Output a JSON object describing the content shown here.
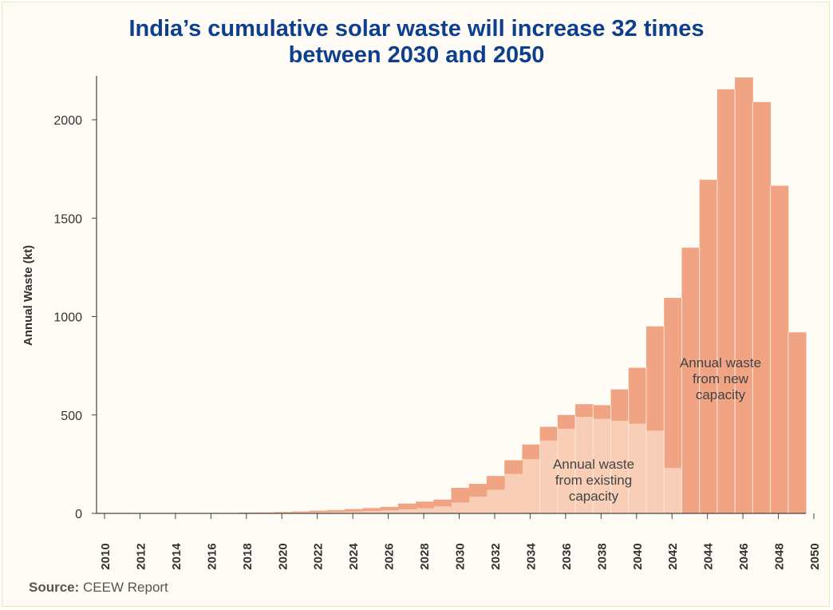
{
  "title": {
    "line1": "India’s cumulative solar waste will increase 32 times",
    "line2": "between 2030 and 2050"
  },
  "source": {
    "label": "Source:",
    "text": "CEEW Report"
  },
  "colors": {
    "title": "#0d3f8f",
    "new_capacity": "#f0a484",
    "existing_capacity": "#f8cfb6",
    "axis": "#444444"
  },
  "chart_data": {
    "type": "bar",
    "stacked": true,
    "title": "India’s cumulative solar waste will increase 32 times between 2030 and 2050",
    "xlabel": "",
    "ylabel": "Annual Waste (kt)",
    "ylim": [
      0,
      2230
    ],
    "yticks": [
      0,
      500,
      1000,
      1500,
      2000
    ],
    "xticks": [
      "2010",
      "2012",
      "2014",
      "2016",
      "2018",
      "2020",
      "2022",
      "2024",
      "2026",
      "2028",
      "2030",
      "2032",
      "2034",
      "2036",
      "2038",
      "2040",
      "2042",
      "2044",
      "2046",
      "2048",
      "2050"
    ],
    "categories": [
      2010,
      2011,
      2012,
      2013,
      2014,
      2015,
      2016,
      2017,
      2018,
      2019,
      2020,
      2021,
      2022,
      2023,
      2024,
      2025,
      2026,
      2027,
      2028,
      2029,
      2030,
      2031,
      2032,
      2033,
      2034,
      2035,
      2036,
      2037,
      2038,
      2039,
      2040,
      2041,
      2042,
      2043,
      2044,
      2045,
      2046,
      2047,
      2048,
      2049
    ],
    "series": [
      {
        "name": "Annual waste from existing capacity",
        "values": [
          0,
          0,
          0,
          0,
          0,
          0,
          0,
          1,
          2,
          3,
          4,
          5,
          6,
          7,
          9,
          12,
          15,
          20,
          26,
          35,
          55,
          85,
          120,
          200,
          275,
          370,
          430,
          490,
          480,
          470,
          455,
          420,
          230,
          0,
          0,
          0,
          0,
          0,
          0,
          0
        ]
      },
      {
        "name": "Annual waste from new capacity",
        "values": [
          0,
          0,
          0,
          0,
          0,
          0,
          1,
          1,
          2,
          2,
          3,
          5,
          8,
          10,
          13,
          15,
          18,
          30,
          34,
          35,
          75,
          65,
          70,
          70,
          75,
          70,
          70,
          65,
          70,
          160,
          285,
          530,
          865,
          1350,
          1695,
          2155,
          2215,
          2090,
          1665,
          920
        ]
      }
    ],
    "annotations": [
      {
        "text_lines": [
          "Annual waste",
          "from new",
          "capacity"
        ],
        "series": "Annual waste from new capacity"
      },
      {
        "text_lines": [
          "Annual waste",
          "from existing",
          "capacity"
        ],
        "series": "Annual waste from existing capacity"
      }
    ]
  }
}
